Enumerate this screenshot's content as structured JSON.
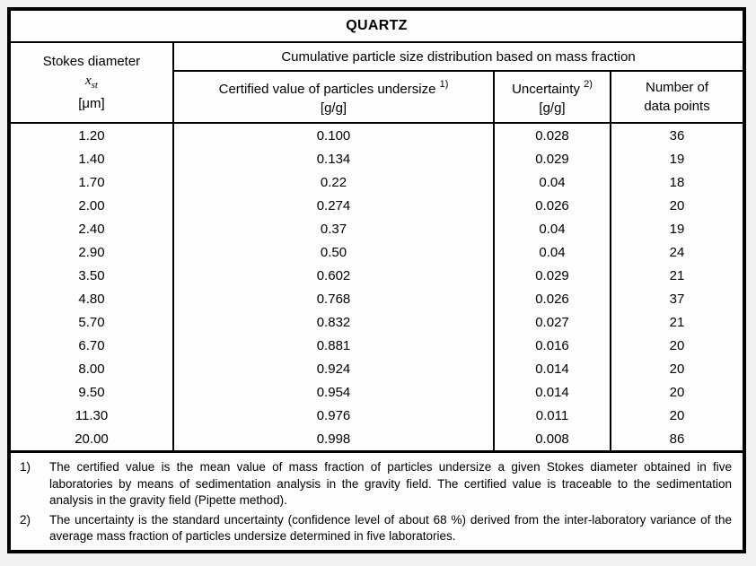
{
  "title": "QUARTZ",
  "colors": {
    "border": "#000000",
    "page_background": "#f1f1f1",
    "table_background": "#fdfdfd",
    "text": "#000000"
  },
  "header": {
    "stokes": {
      "label": "Stokes diameter",
      "symbol": "x",
      "symbol_sub": "st",
      "unit": "[μm]"
    },
    "group": "Cumulative particle size distribution based on mass fraction",
    "certified": {
      "label": "Certified value of particles undersize",
      "footnote_ref": "1)",
      "unit": "[g/g]"
    },
    "uncertainty": {
      "label": "Uncertainty",
      "footnote_ref": "2)",
      "unit": "[g/g]"
    },
    "points": {
      "line1": "Number of",
      "line2": "data points"
    }
  },
  "rows": [
    [
      "1.20",
      "0.100",
      "0.028",
      "36"
    ],
    [
      "1.40",
      "0.134",
      "0.029",
      "19"
    ],
    [
      "1.70",
      "0.22",
      "0.04",
      "18"
    ],
    [
      "2.00",
      "0.274",
      "0.026",
      "20"
    ],
    [
      "2.40",
      "0.37",
      "0.04",
      "19"
    ],
    [
      "2.90",
      "0.50",
      "0.04",
      "24"
    ],
    [
      "3.50",
      "0.602",
      "0.029",
      "21"
    ],
    [
      "4.80",
      "0.768",
      "0.026",
      "37"
    ],
    [
      "5.70",
      "0.832",
      "0.027",
      "21"
    ],
    [
      "6.70",
      "0.881",
      "0.016",
      "20"
    ],
    [
      "8.00",
      "0.924",
      "0.014",
      "20"
    ],
    [
      "9.50",
      "0.954",
      "0.014",
      "20"
    ],
    [
      "11.30",
      "0.976",
      "0.011",
      "20"
    ],
    [
      "20.00",
      "0.998",
      "0.008",
      "86"
    ]
  ],
  "footnotes": [
    {
      "marker": "1)",
      "text": "The certified value is the mean value of mass fraction of particles undersize a given Stokes diameter obtained in five laboratories by means of sedimentation analysis in the gravity field. The certified value is traceable to the sedimentation analysis in the gravity field (Pipette method)."
    },
    {
      "marker": "2)",
      "text": "The uncertainty is the standard uncertainty (confidence level of about 68 %) derived from the inter-laboratory variance of the average mass fraction of particles undersize determined in five laboratories."
    }
  ]
}
